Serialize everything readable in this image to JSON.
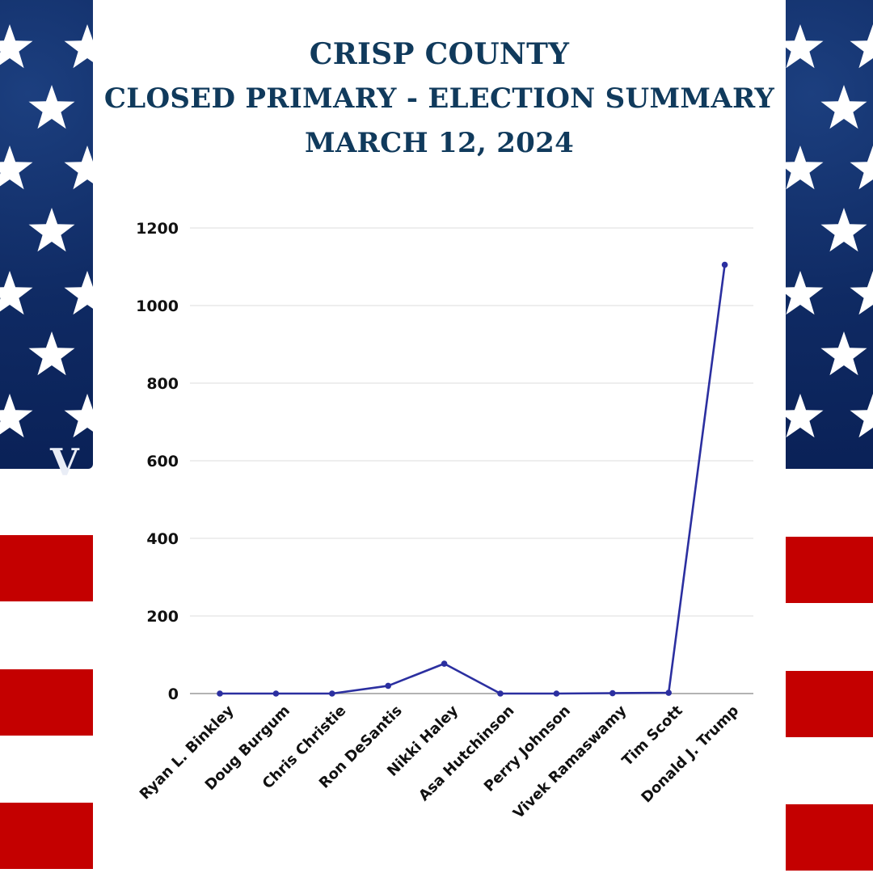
{
  "title": {
    "line1": "CRISP COUNTY",
    "line2": "CLOSED PRIMARY - ELECTION SUMMARY",
    "line3": "MARCH 12, 2024"
  },
  "colors": {
    "title": "#103a5c",
    "line": "#2b2fa0",
    "grid": "#dddddd",
    "flag_blue": "#0f2a63",
    "flag_red": "#c40000"
  },
  "chart_data": {
    "type": "line",
    "title": "",
    "xlabel": "",
    "ylabel": "",
    "categories": [
      "Ryan L. Binkley",
      "Doug Burgum",
      "Chris Christie",
      "Ron DeSantis",
      "Nikki Haley",
      "Asa Hutchinson",
      "Perry Johnson",
      "Vivek Ramaswamy",
      "Tim Scott",
      "Donald J. Trump"
    ],
    "values": [
      0,
      0,
      0,
      20,
      77,
      0,
      0,
      1,
      2,
      1105
    ],
    "ylim": [
      0,
      1200
    ],
    "yticks": [
      0,
      200,
      400,
      600,
      800,
      1000,
      1200
    ],
    "grid": true,
    "legend": "none"
  }
}
